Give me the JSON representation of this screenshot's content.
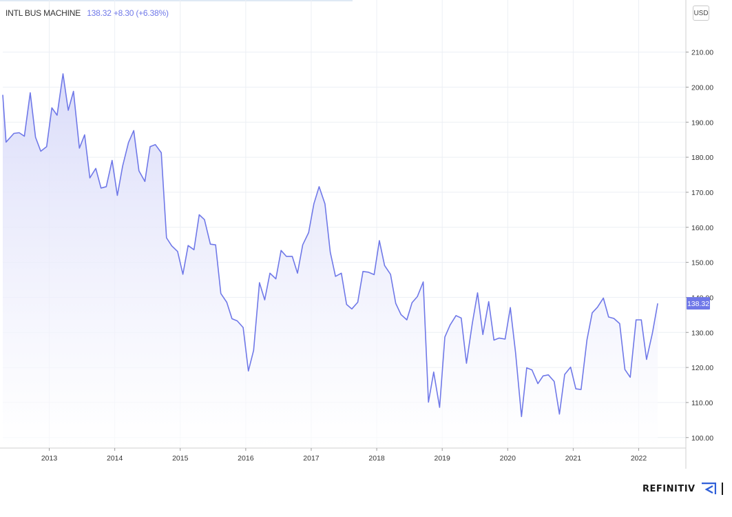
{
  "legend": {
    "name": "INTL BUS MACHINE",
    "values": "138.32  +8.30 (+6.38%)"
  },
  "currency": "USD",
  "brand": {
    "name": "REFINITIV",
    "icon": "refinitiv-logo-icon"
  },
  "colors": {
    "line": "#6f78e8",
    "fill_top": "#d8daf9",
    "fill_bottom": "#ffffff",
    "grid": "#eceff4",
    "axis_text": "#333333"
  },
  "chart_data": {
    "type": "area",
    "title": "INTL BUS MACHINE",
    "xlabel": "",
    "ylabel": "",
    "ylim": [
      97,
      217
    ],
    "y_ticks": [
      "100.00",
      "110.00",
      "120.00",
      "130.00",
      "140.00",
      "150.00",
      "160.00",
      "170.00",
      "180.00",
      "190.00",
      "200.00",
      "210.00"
    ],
    "x_ticks": [
      "2013",
      "2014",
      "2015",
      "2016",
      "2017",
      "2018",
      "2019",
      "2020",
      "2021",
      "2022"
    ],
    "grid": true,
    "last_price_label": "138.32",
    "series": [
      {
        "values": [
          [
            2012.29,
            197.8
          ],
          [
            2012.34,
            184.3
          ],
          [
            2012.46,
            186.8
          ],
          [
            2012.54,
            187.0
          ],
          [
            2012.62,
            186.0
          ],
          [
            2012.71,
            198.4
          ],
          [
            2012.79,
            185.7
          ],
          [
            2012.87,
            181.7
          ],
          [
            2012.96,
            183.0
          ],
          [
            2013.04,
            194.1
          ],
          [
            2013.12,
            192.0
          ],
          [
            2013.21,
            203.8
          ],
          [
            2013.29,
            193.4
          ],
          [
            2013.37,
            198.8
          ],
          [
            2013.46,
            182.6
          ],
          [
            2013.54,
            186.4
          ],
          [
            2013.62,
            174.1
          ],
          [
            2013.71,
            176.8
          ],
          [
            2013.79,
            171.2
          ],
          [
            2013.87,
            171.6
          ],
          [
            2013.96,
            179.1
          ],
          [
            2014.04,
            169.1
          ],
          [
            2014.12,
            177.5
          ],
          [
            2014.21,
            184.2
          ],
          [
            2014.29,
            187.6
          ],
          [
            2014.37,
            176.1
          ],
          [
            2014.46,
            173.1
          ],
          [
            2014.54,
            183.0
          ],
          [
            2014.62,
            183.6
          ],
          [
            2014.71,
            181.3
          ],
          [
            2014.79,
            157.0
          ],
          [
            2014.87,
            154.7
          ],
          [
            2014.96,
            153.1
          ],
          [
            2015.04,
            146.6
          ],
          [
            2015.12,
            154.8
          ],
          [
            2015.21,
            153.6
          ],
          [
            2015.29,
            163.6
          ],
          [
            2015.37,
            162.2
          ],
          [
            2015.46,
            155.2
          ],
          [
            2015.54,
            155.0
          ],
          [
            2015.62,
            141.1
          ],
          [
            2015.71,
            138.6
          ],
          [
            2015.79,
            133.9
          ],
          [
            2015.87,
            133.3
          ],
          [
            2015.96,
            131.4
          ],
          [
            2016.04,
            119.0
          ],
          [
            2016.12,
            124.9
          ],
          [
            2016.21,
            144.2
          ],
          [
            2016.29,
            139.3
          ],
          [
            2016.37,
            146.9
          ],
          [
            2016.46,
            145.3
          ],
          [
            2016.54,
            153.4
          ],
          [
            2016.62,
            151.7
          ],
          [
            2016.71,
            151.7
          ],
          [
            2016.79,
            146.9
          ],
          [
            2016.87,
            155.0
          ],
          [
            2016.96,
            158.5
          ],
          [
            2017.04,
            166.7
          ],
          [
            2017.12,
            171.6
          ],
          [
            2017.21,
            166.7
          ],
          [
            2017.29,
            152.9
          ],
          [
            2017.37,
            146.0
          ],
          [
            2017.46,
            146.9
          ],
          [
            2017.54,
            138.0
          ],
          [
            2017.62,
            136.7
          ],
          [
            2017.71,
            138.6
          ],
          [
            2017.79,
            147.4
          ],
          [
            2017.87,
            147.2
          ],
          [
            2017.96,
            146.5
          ],
          [
            2018.04,
            156.2
          ],
          [
            2018.12,
            149.1
          ],
          [
            2018.21,
            146.6
          ],
          [
            2018.29,
            138.3
          ],
          [
            2018.37,
            135.1
          ],
          [
            2018.46,
            133.6
          ],
          [
            2018.54,
            138.5
          ],
          [
            2018.62,
            140.2
          ],
          [
            2018.71,
            144.4
          ],
          [
            2018.79,
            110.1
          ],
          [
            2018.87,
            118.7
          ],
          [
            2018.96,
            108.6
          ],
          [
            2019.04,
            128.7
          ],
          [
            2019.12,
            132.1
          ],
          [
            2019.21,
            134.8
          ],
          [
            2019.29,
            134.1
          ],
          [
            2019.37,
            121.2
          ],
          [
            2019.46,
            132.6
          ],
          [
            2019.54,
            141.3
          ],
          [
            2019.62,
            129.4
          ],
          [
            2019.71,
            138.8
          ],
          [
            2019.79,
            127.8
          ],
          [
            2019.87,
            128.4
          ],
          [
            2019.96,
            128.1
          ],
          [
            2020.04,
            137.1
          ],
          [
            2020.12,
            124.2
          ],
          [
            2020.21,
            106.0
          ],
          [
            2020.29,
            119.9
          ],
          [
            2020.37,
            119.3
          ],
          [
            2020.46,
            115.4
          ],
          [
            2020.54,
            117.6
          ],
          [
            2020.62,
            117.9
          ],
          [
            2020.71,
            116.0
          ],
          [
            2020.79,
            106.7
          ],
          [
            2020.87,
            118.0
          ],
          [
            2020.96,
            120.1
          ],
          [
            2021.04,
            113.9
          ],
          [
            2021.12,
            113.7
          ],
          [
            2021.21,
            127.9
          ],
          [
            2021.29,
            135.6
          ],
          [
            2021.37,
            137.2
          ],
          [
            2021.46,
            139.8
          ],
          [
            2021.54,
            134.4
          ],
          [
            2021.62,
            134.0
          ],
          [
            2021.71,
            132.5
          ],
          [
            2021.79,
            119.4
          ],
          [
            2021.87,
            117.2
          ],
          [
            2021.96,
            133.6
          ],
          [
            2022.04,
            133.6
          ],
          [
            2022.12,
            122.3
          ],
          [
            2022.21,
            129.9
          ],
          [
            2022.29,
            138.3
          ]
        ]
      }
    ]
  }
}
